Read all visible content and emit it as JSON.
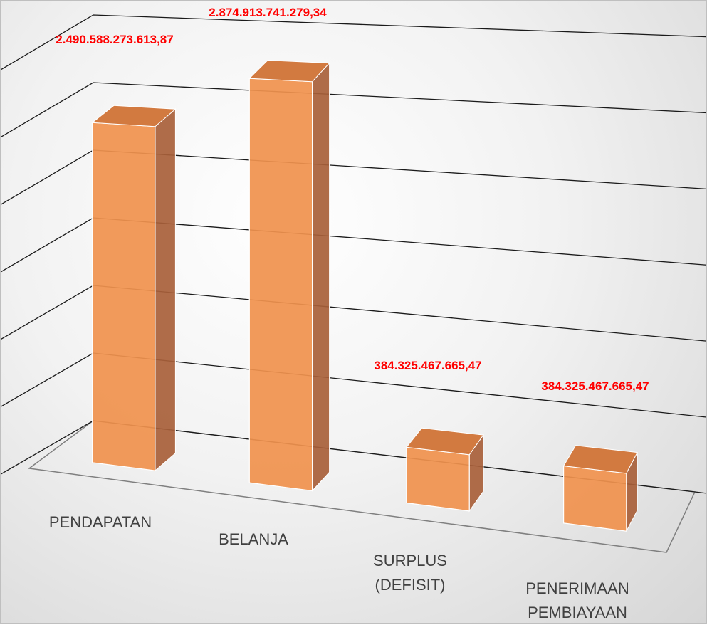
{
  "chart_data": {
    "type": "bar3d",
    "categories": [
      "PENDAPATAN",
      "BELANJA",
      "SURPLUS (DEFISIT)",
      "PENERIMAAN PEMBIAYAAN"
    ],
    "values": [
      2490588273613.87,
      2874913741279.34,
      384325467665.47,
      384325467665.47
    ],
    "value_labels": [
      "2.490.588.273.613,87",
      "2.874.913.741.279,34",
      "384.325.467.665,47",
      "384.325.467.665,47"
    ],
    "color": "#f0924f",
    "ylim": [
      0,
      3000000000000
    ],
    "yticks": [
      0,
      500000000000,
      1000000000000,
      1500000000000,
      2000000000000,
      2500000000000,
      3000000000000
    ],
    "grid": true
  }
}
